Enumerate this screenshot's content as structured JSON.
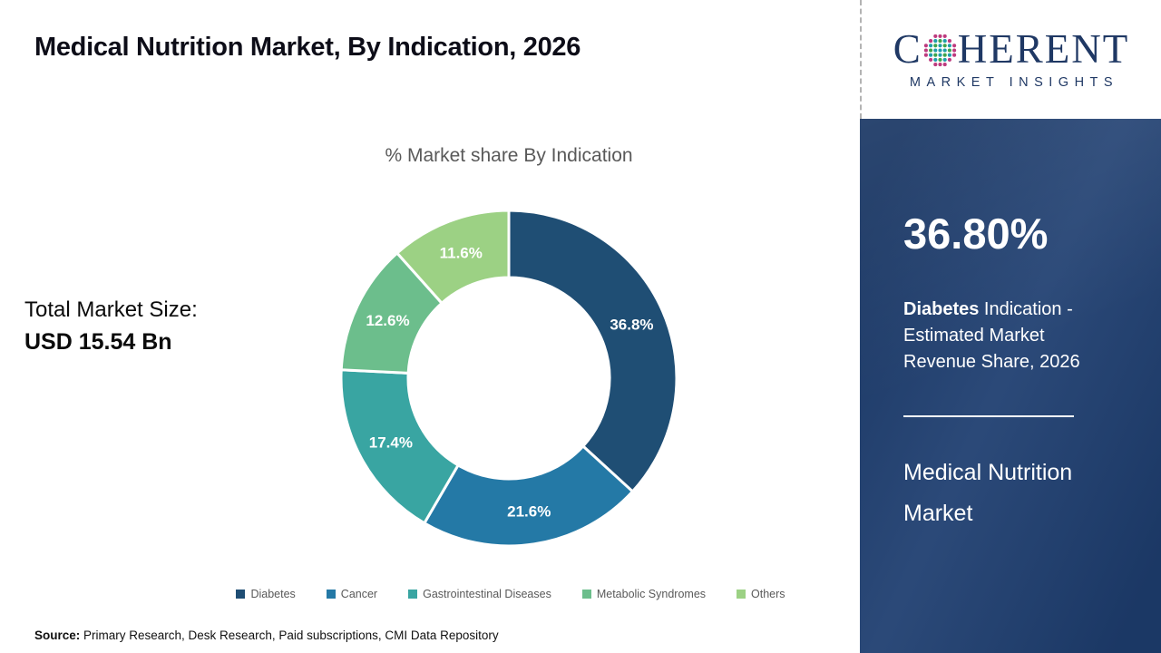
{
  "header": {
    "title": "Medical Nutrition Market, By Indication, 2026"
  },
  "logo": {
    "brand_prefix": "C",
    "brand_suffix": "HERENT",
    "subtitle": "MARKET INSIGHTS",
    "brand_color": "#1f3864"
  },
  "left_panel": {
    "total_label": "Total Market Size:",
    "total_value": "USD 15.54 Bn"
  },
  "chart_data": {
    "type": "pie",
    "subtype": "donut",
    "title": "% Market share By Indication",
    "categories": [
      "Diabetes",
      "Cancer",
      "Gastrointestinal Diseases",
      "Metabolic Syndromes",
      "Others"
    ],
    "values": [
      36.8,
      21.6,
      17.4,
      12.6,
      11.6
    ],
    "data_labels": [
      "36.8%",
      "21.6%",
      "17.4%",
      "12.6%",
      "11.6%"
    ],
    "colors": [
      "#1F4E74",
      "#2479A6",
      "#39A5A2",
      "#6CBE8C",
      "#9CD184"
    ],
    "start_angle_deg": 0,
    "direction": "clockwise",
    "inner_radius_ratio": 0.6,
    "legend_position": "bottom"
  },
  "sidebar": {
    "stat_value": "36.80%",
    "stat_bold": "Diabetes",
    "stat_rest": " Indication - Estimated Market Revenue Share, 2026",
    "market_name": "Medical Nutrition Market",
    "background_color": "#1e3e70"
  },
  "footer": {
    "source_label": "Source:",
    "source_text": " Primary Research, Desk Research, Paid subscriptions, CMI Data Repository"
  }
}
